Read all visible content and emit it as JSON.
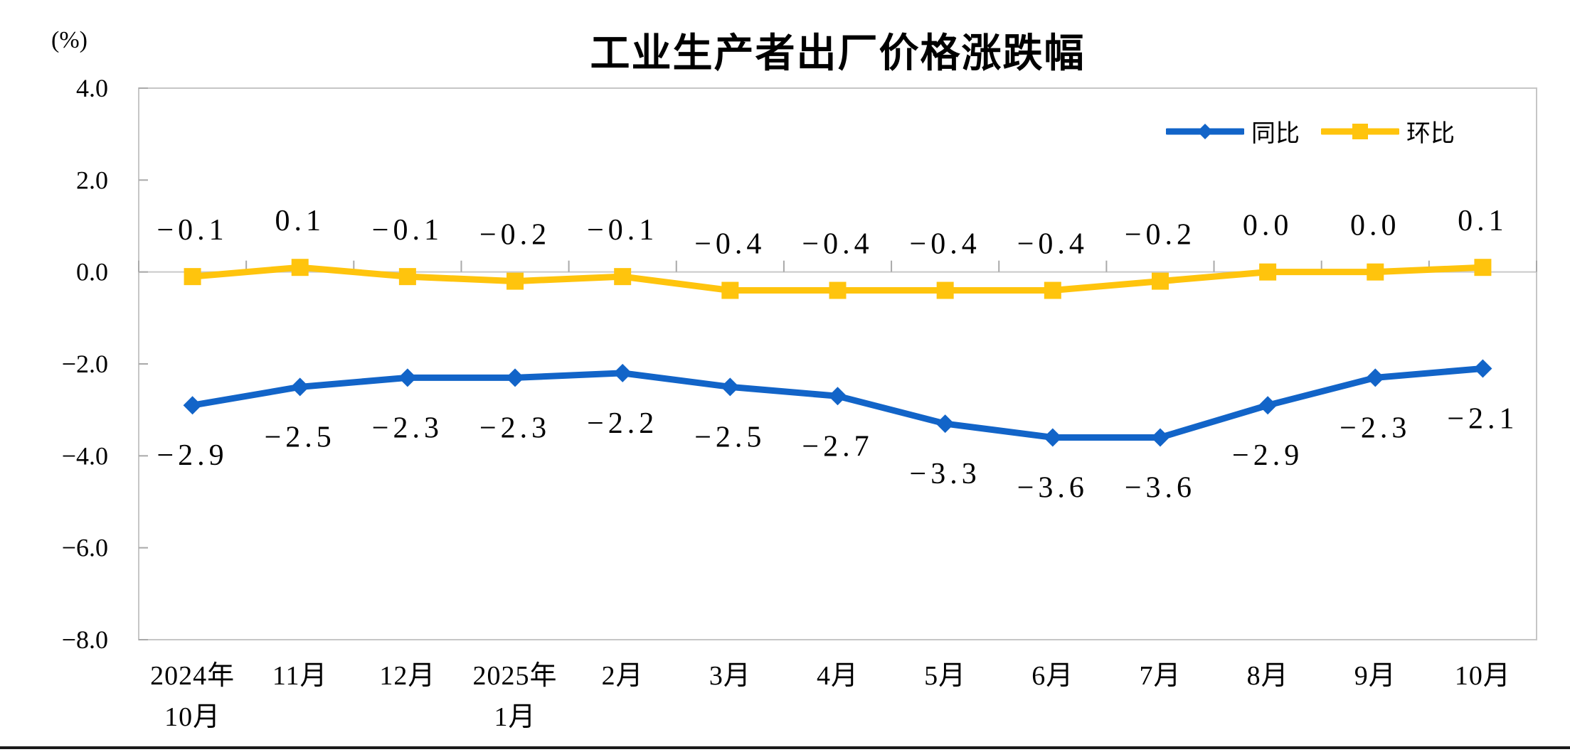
{
  "page": {
    "background": "#FFFFFF",
    "bottom_rule_color": "#1A1A1A"
  },
  "chart_data": {
    "type": "line",
    "title": "工业生产者出厂价格涨跌幅",
    "unit_label": "(%)",
    "legend_position": "top-right",
    "grid": "zero-line-only",
    "x_categories": [
      [
        "2024年",
        "10月"
      ],
      [
        "11月"
      ],
      [
        "12月"
      ],
      [
        "2025年",
        "1月"
      ],
      [
        "2月"
      ],
      [
        "3月"
      ],
      [
        "4月"
      ],
      [
        "5月"
      ],
      [
        "6月"
      ],
      [
        "7月"
      ],
      [
        "8月"
      ],
      [
        "9月"
      ],
      [
        "10月"
      ]
    ],
    "y_axis": {
      "min": -8,
      "max": 4,
      "step": 2,
      "tick_labels": [
        "4.0",
        "2.0",
        "0.0",
        "−2.0",
        "−4.0",
        "−6.0",
        "−8.0"
      ]
    },
    "series": [
      {
        "name": "同比",
        "marker": "diamond",
        "color": "#1264C8",
        "label_position": "below",
        "values": [
          -2.9,
          -2.5,
          -2.3,
          -2.3,
          -2.2,
          -2.5,
          -2.7,
          -3.3,
          -3.6,
          -3.6,
          -2.9,
          -2.3,
          -2.1
        ],
        "labels": [
          "−2.9",
          "−2.5",
          "−2.3",
          "−2.3",
          "−2.2",
          "−2.5",
          "−2.7",
          "−3.3",
          "−3.6",
          "−3.6",
          "−2.9",
          "−2.3",
          "−2.1"
        ]
      },
      {
        "name": "环比",
        "marker": "square",
        "color": "#FFC40D",
        "label_position": "above",
        "values": [
          -0.1,
          0.1,
          -0.1,
          -0.2,
          -0.1,
          -0.4,
          -0.4,
          -0.4,
          -0.4,
          -0.2,
          0.0,
          0.0,
          0.1
        ],
        "labels": [
          "−0.1",
          "0.1",
          "−0.1",
          "−0.2",
          "−0.1",
          "−0.4",
          "−0.4",
          "−0.4",
          "−0.4",
          "−0.2",
          "0.0",
          "0.0",
          "0.1"
        ]
      }
    ],
    "colors": {
      "zero_line": "#C9C9C9",
      "plot_border": "#C6C6C6",
      "tick": "#A9A9A9",
      "text": "#000000"
    }
  }
}
